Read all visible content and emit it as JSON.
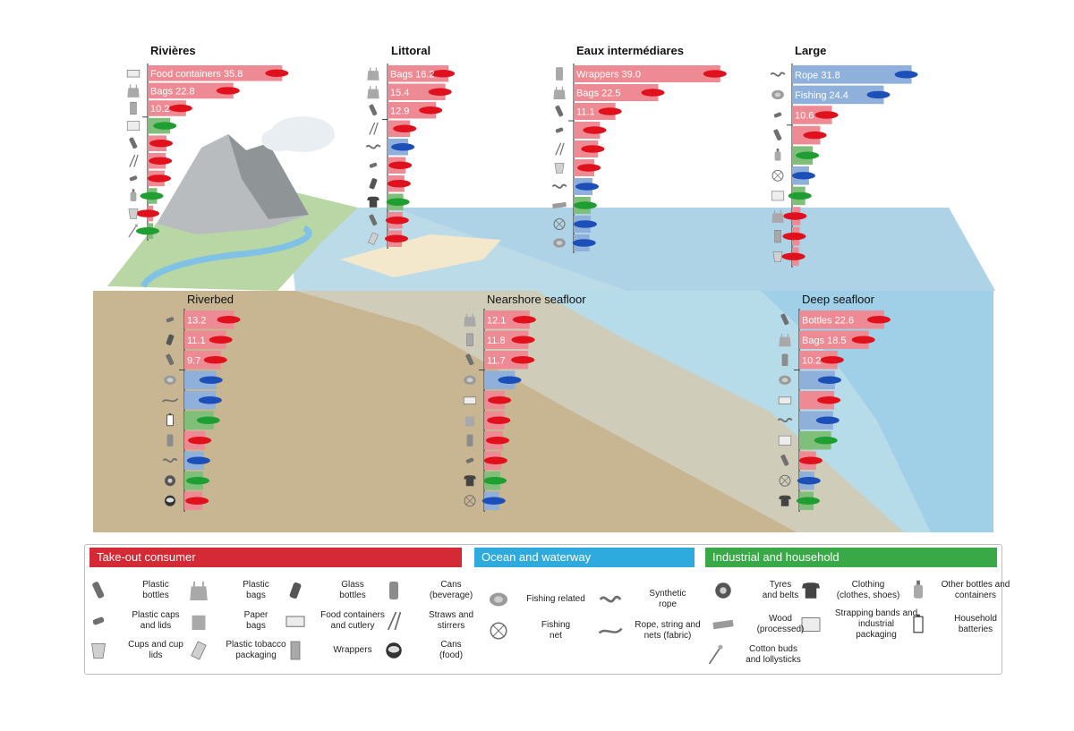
{
  "colors": {
    "takeout": "#d42a35",
    "ocean": "#2eaadc",
    "industrial": "#39a847",
    "bar_red": "#ee8a93",
    "bar_blue": "#8fb0db",
    "bar_green": "#7fbf7a",
    "arrow_red": "#e0101c",
    "arrow_blue": "#1d4fb8",
    "arrow_green": "#1f9e32"
  },
  "panels": [
    {
      "title": "Rivières",
      "bars": [
        {
          "icon": "food-container",
          "label": "Food containers 35.8",
          "value": 35.8,
          "color": "red"
        },
        {
          "icon": "plastic-bag",
          "label": "Bags 22.8",
          "value": 22.8,
          "color": "red"
        },
        {
          "icon": "wrapper",
          "label": "10.2",
          "value": 10.2,
          "color": "red"
        },
        {
          "icon": "strapping-band",
          "label": "",
          "value": 6,
          "color": "green"
        },
        {
          "icon": "plastic-bottle",
          "label": "",
          "value": 5,
          "color": "red"
        },
        {
          "icon": "straw",
          "label": "",
          "value": 4.8,
          "color": "red"
        },
        {
          "icon": "plastic-cap",
          "label": "",
          "value": 4.5,
          "color": "red"
        },
        {
          "icon": "other-bottle",
          "label": "",
          "value": 2.5,
          "color": "green"
        },
        {
          "icon": "cup",
          "label": "",
          "value": 1.2,
          "color": "red"
        },
        {
          "icon": "cotton-bud",
          "label": "",
          "value": 1.3,
          "color": "green"
        }
      ]
    },
    {
      "title": "Littoral",
      "bars": [
        {
          "icon": "plastic-bag",
          "label": "Bags 16.2",
          "value": 16.2,
          "color": "red"
        },
        {
          "icon": "plastic-bag",
          "label": "15.4",
          "value": 15.4,
          "color": "red"
        },
        {
          "icon": "plastic-bottle",
          "label": "12.9",
          "value": 12.9,
          "color": "red"
        },
        {
          "icon": "straw",
          "label": "",
          "value": 6,
          "color": "red"
        },
        {
          "icon": "synthetic-rope",
          "label": "",
          "value": 5.5,
          "color": "blue"
        },
        {
          "icon": "plastic-cap",
          "label": "",
          "value": 4.8,
          "color": "red"
        },
        {
          "icon": "glass-bottle",
          "label": "",
          "value": 4.5,
          "color": "red"
        },
        {
          "icon": "clothing",
          "label": "",
          "value": 4.2,
          "color": "green"
        },
        {
          "icon": "plastic-bottle",
          "label": "",
          "value": 4,
          "color": "red"
        },
        {
          "icon": "tobacco-packaging",
          "label": "",
          "value": 3.8,
          "color": "red"
        }
      ]
    },
    {
      "title": "Eaux intermédiares",
      "bars": [
        {
          "icon": "wrapper",
          "label": "Wrappers 39.0",
          "value": 39.0,
          "color": "red"
        },
        {
          "icon": "plastic-bag",
          "label": "Bags 22.5",
          "value": 22.5,
          "color": "red"
        },
        {
          "icon": "plastic-bottle",
          "label": "11.1",
          "value": 11.1,
          "color": "red"
        },
        {
          "icon": "plastic-cap",
          "label": "",
          "value": 7,
          "color": "red"
        },
        {
          "icon": "straw",
          "label": "",
          "value": 6.5,
          "color": "red"
        },
        {
          "icon": "cup",
          "label": "",
          "value": 5.5,
          "color": "red"
        },
        {
          "icon": "synthetic-rope",
          "label": "",
          "value": 5,
          "color": "blue"
        },
        {
          "icon": "wood",
          "label": "",
          "value": 4.5,
          "color": "green"
        },
        {
          "icon": "fishing-net",
          "label": "",
          "value": 4.5,
          "color": "blue"
        },
        {
          "icon": "fishing-related",
          "label": "",
          "value": 4.2,
          "color": "blue"
        }
      ]
    },
    {
      "title": "Large",
      "bars": [
        {
          "icon": "synthetic-rope",
          "label": "Rope 31.8",
          "value": 31.8,
          "color": "blue"
        },
        {
          "icon": "fishing-related",
          "label": "Fishing 24.4",
          "value": 24.4,
          "color": "blue"
        },
        {
          "icon": "plastic-cap",
          "label": "10.6",
          "value": 10.6,
          "color": "red"
        },
        {
          "icon": "plastic-bottle",
          "label": "",
          "value": 7.5,
          "color": "red"
        },
        {
          "icon": "other-bottle",
          "label": "",
          "value": 5.5,
          "color": "green"
        },
        {
          "icon": "fishing-net",
          "label": "",
          "value": 4.5,
          "color": "blue"
        },
        {
          "icon": "strapping-band",
          "label": "",
          "value": 3.5,
          "color": "green"
        },
        {
          "icon": "plastic-bag",
          "label": "",
          "value": 2.2,
          "color": "red"
        },
        {
          "icon": "wrapper",
          "label": "",
          "value": 2,
          "color": "red"
        },
        {
          "icon": "cup",
          "label": "",
          "value": 1.8,
          "color": "red"
        }
      ]
    },
    {
      "title": "Riverbed",
      "bars": [
        {
          "icon": "plastic-cap",
          "label": "13.2",
          "value": 13.2,
          "color": "red"
        },
        {
          "icon": "glass-bottle",
          "label": "11.1",
          "value": 11.1,
          "color": "red"
        },
        {
          "icon": "plastic-bottle",
          "label": "9.7",
          "value": 9.7,
          "color": "red"
        },
        {
          "icon": "fishing-related",
          "label": "",
          "value": 8.5,
          "color": "blue"
        },
        {
          "icon": "rope-string",
          "label": "",
          "value": 8.3,
          "color": "blue"
        },
        {
          "icon": "household-battery",
          "label": "",
          "value": 7.8,
          "color": "green"
        },
        {
          "icon": "can-beverage",
          "label": "",
          "value": 5.5,
          "color": "red"
        },
        {
          "icon": "synthetic-rope",
          "label": "",
          "value": 5.2,
          "color": "blue"
        },
        {
          "icon": "tyre",
          "label": "",
          "value": 5,
          "color": "green"
        },
        {
          "icon": "can-food",
          "label": "",
          "value": 4.8,
          "color": "red"
        }
      ]
    },
    {
      "title": "Nearshore seafloor",
      "bars": [
        {
          "icon": "plastic-bag",
          "label": "12.1",
          "value": 12.1,
          "color": "red"
        },
        {
          "icon": "wrapper",
          "label": "11.8",
          "value": 11.8,
          "color": "red"
        },
        {
          "icon": "plastic-bottle",
          "label": "11.7",
          "value": 11.7,
          "color": "red"
        },
        {
          "icon": "fishing-related",
          "label": "",
          "value": 8.2,
          "color": "blue"
        },
        {
          "icon": "food-container",
          "label": "",
          "value": 5.5,
          "color": "red"
        },
        {
          "icon": "paper-bag",
          "label": "",
          "value": 5.3,
          "color": "red"
        },
        {
          "icon": "can-beverage",
          "label": "",
          "value": 5,
          "color": "red"
        },
        {
          "icon": "plastic-cap",
          "label": "",
          "value": 4.5,
          "color": "red"
        },
        {
          "icon": "clothing",
          "label": "",
          "value": 4.3,
          "color": "green"
        },
        {
          "icon": "fishing-net",
          "label": "",
          "value": 4,
          "color": "blue"
        }
      ]
    },
    {
      "title": "Deep seafloor",
      "bars": [
        {
          "icon": "plastic-bottle",
          "label": "Bottles 22.6",
          "value": 22.6,
          "color": "red"
        },
        {
          "icon": "plastic-bag",
          "label": "Bags 18.5",
          "value": 18.5,
          "color": "red"
        },
        {
          "icon": "can-beverage",
          "label": "10.2",
          "value": 10.2,
          "color": "red"
        },
        {
          "icon": "fishing-related",
          "label": "",
          "value": 9.5,
          "color": "blue"
        },
        {
          "icon": "food-container",
          "label": "",
          "value": 9.3,
          "color": "red"
        },
        {
          "icon": "synthetic-rope",
          "label": "",
          "value": 9,
          "color": "blue"
        },
        {
          "icon": "strapping-band",
          "label": "",
          "value": 8.5,
          "color": "green"
        },
        {
          "icon": "plastic-bottle",
          "label": "",
          "value": 4.5,
          "color": "red"
        },
        {
          "icon": "fishing-net",
          "label": "",
          "value": 4,
          "color": "blue"
        },
        {
          "icon": "clothing",
          "label": "",
          "value": 3.8,
          "color": "green"
        }
      ]
    }
  ],
  "legend": {
    "categories": [
      {
        "key": "takeout",
        "label": "Take-out consumer"
      },
      {
        "key": "ocean",
        "label": "Ocean and waterway"
      },
      {
        "key": "industrial",
        "label": "Industrial and household"
      }
    ],
    "items": [
      {
        "icon": "plastic-bottle",
        "label": "Plastic\nbottles"
      },
      {
        "icon": "plastic-bag",
        "label": "Plastic\nbags"
      },
      {
        "icon": "glass-bottle",
        "label": "Glass\nbottles"
      },
      {
        "icon": "can-beverage",
        "label": "Cans\n(beverage)"
      },
      {
        "icon": "plastic-cap",
        "label": "Plastic caps\nand lids"
      },
      {
        "icon": "paper-bag",
        "label": "Paper\nbags"
      },
      {
        "icon": "food-container",
        "label": "Food containers\nand cutlery"
      },
      {
        "icon": "straw",
        "label": "Straws and\nstirrers"
      },
      {
        "icon": "cup",
        "label": "Cups and cup\nlids"
      },
      {
        "icon": "tobacco-packaging",
        "label": "Plastic tobacco\npackaging"
      },
      {
        "icon": "wrapper",
        "label": "Wrappers"
      },
      {
        "icon": "can-food",
        "label": "Cans\n(food)"
      },
      {
        "icon": "fishing-related",
        "label": "Fishing related"
      },
      {
        "icon": "synthetic-rope",
        "label": "Synthetic\nrope"
      },
      {
        "icon": "fishing-net",
        "label": "Fishing\nnet"
      },
      {
        "icon": "rope-string",
        "label": "Rope, string and\nnets (fabric)"
      },
      {
        "icon": "tyre",
        "label": "Tyres\nand belts"
      },
      {
        "icon": "clothing",
        "label": "Clothing\n(clothes, shoes)"
      },
      {
        "icon": "other-bottle",
        "label": "Other bottles and\ncontainers"
      },
      {
        "icon": "wood",
        "label": "Wood\n(processed)"
      },
      {
        "icon": "strapping-band",
        "label": "Strapping bands and\nindustrial\npackaging"
      },
      {
        "icon": "household-battery",
        "label": "Household\nbatteries"
      },
      {
        "icon": "cotton-bud",
        "label": "Cotton buds\nand lollysticks"
      }
    ]
  }
}
